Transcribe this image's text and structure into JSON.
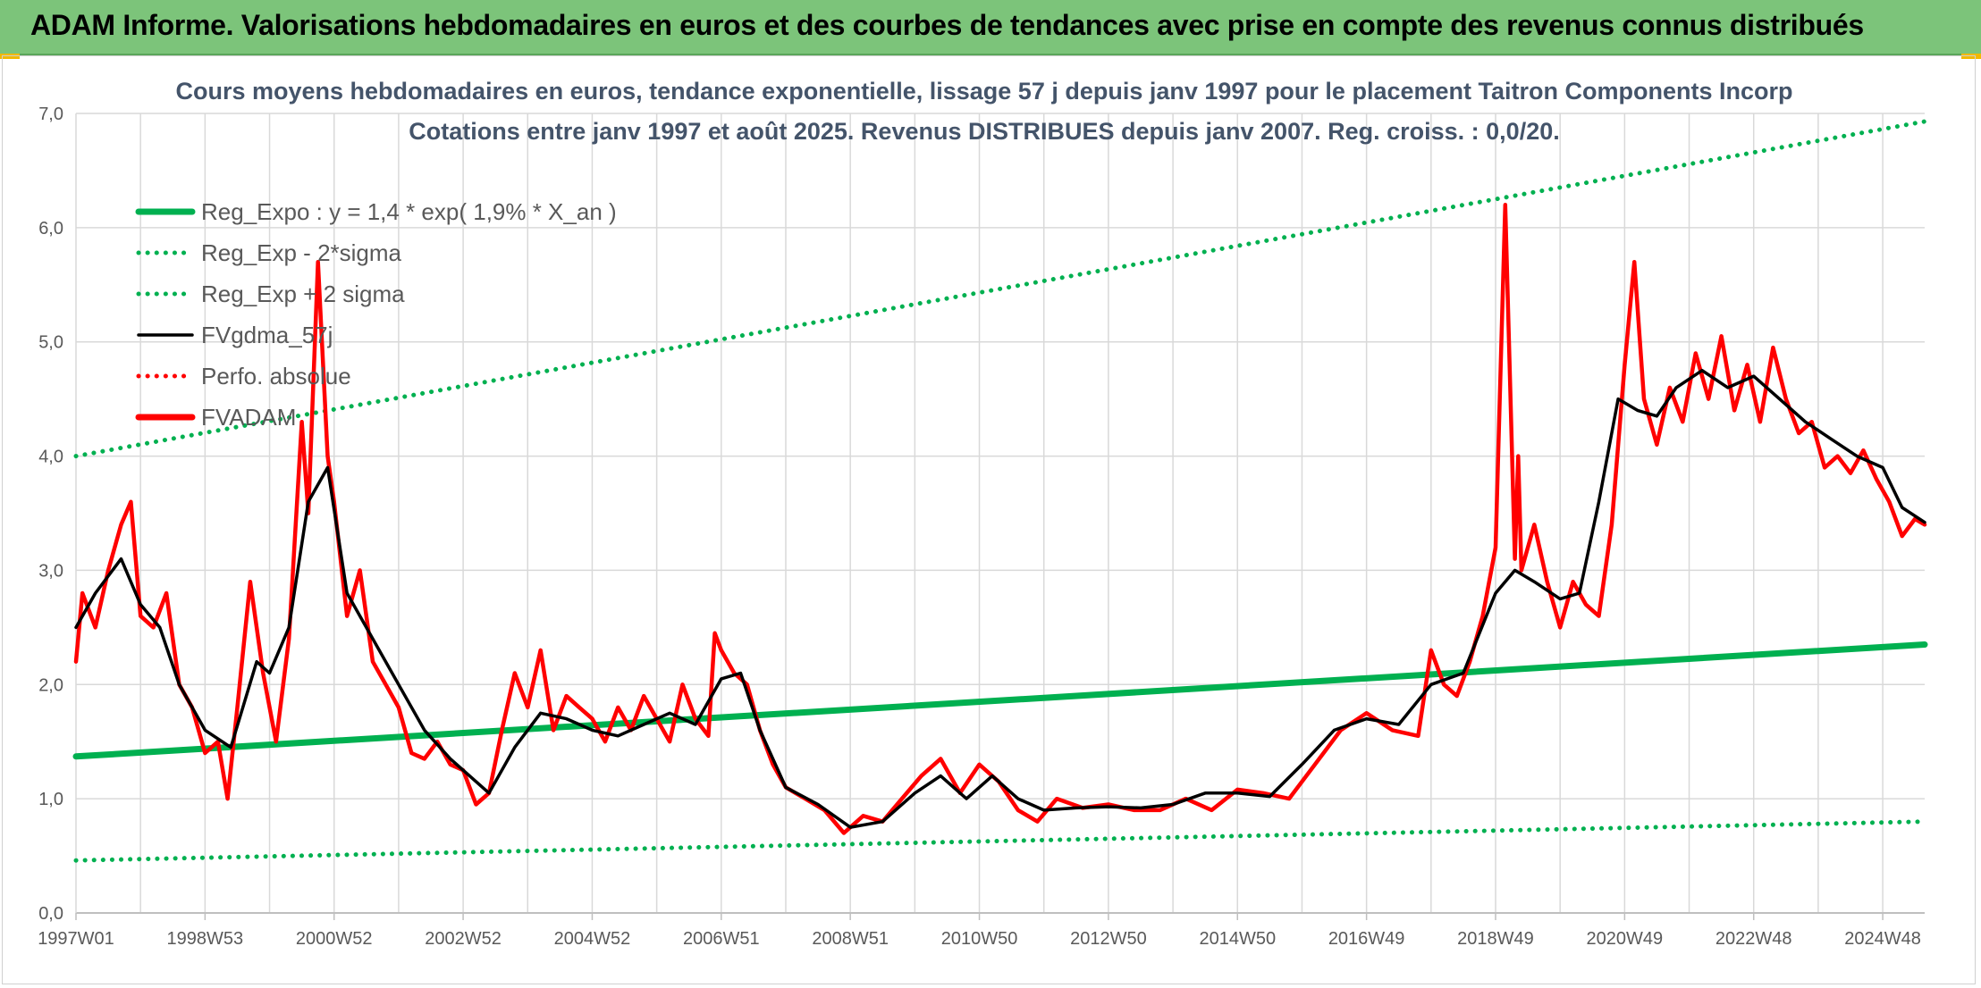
{
  "header": {
    "title": "ADAM Informe. Valorisations hebdomadaires en euros et des courbes de tendances avec prise en compte des revenus connus distribués"
  },
  "colors": {
    "header_bg": "#7cc47a",
    "reg_green": "#00b050",
    "fvgdma_black": "#000000",
    "fvadam_red": "#ff0000",
    "grid": "#d9d9d9"
  },
  "chart_data": {
    "type": "line",
    "title": "Cours moyens hebdomadaires en euros, tendance exponentielle, lissage 57 j depuis janv 1997 pour le placement Taitron Components Incorp",
    "subtitle": "Cotations entre janv 1997 et août 2025. Revenus DISTRIBUES depuis janv 2007. Reg. croiss. : 0,0/20.",
    "xlabel": "",
    "ylabel": "",
    "xlim": [
      1997.0,
      2025.65
    ],
    "ylim": [
      0,
      7
    ],
    "y_ticks": [
      "0,0",
      "1,0",
      "2,0",
      "3,0",
      "4,0",
      "5,0",
      "6,0",
      "7,0"
    ],
    "x_ticks": [
      {
        "label": "1997W01",
        "x": 1997.0
      },
      {
        "label": "1998W53",
        "x": 1999.0
      },
      {
        "label": "2000W52",
        "x": 2001.0
      },
      {
        "label": "2002W52",
        "x": 2003.0
      },
      {
        "label": "2004W52",
        "x": 2005.0
      },
      {
        "label": "2006W51",
        "x": 2007.0
      },
      {
        "label": "2008W51",
        "x": 2009.0
      },
      {
        "label": "2010W50",
        "x": 2011.0
      },
      {
        "label": "2012W50",
        "x": 2013.0
      },
      {
        "label": "2014W50",
        "x": 2015.0
      },
      {
        "label": "2016W49",
        "x": 2017.0
      },
      {
        "label": "2018W49",
        "x": 2019.0
      },
      {
        "label": "2020W49",
        "x": 2021.0
      },
      {
        "label": "2022W48",
        "x": 2023.0
      },
      {
        "label": "2024W48",
        "x": 2025.0
      }
    ],
    "grid": true,
    "legend_position": "top-left",
    "series": [
      {
        "name": "Reg_Expo : y = 1,4 * exp( 1,9% *  X_an )",
        "style": "solid-thick",
        "color": "#00b050",
        "x": [
          1997.0,
          2025.65
        ],
        "y": [
          1.37,
          2.35
        ]
      },
      {
        "name": "Reg_Exp - 2*sigma",
        "style": "dotted",
        "color": "#00b050",
        "x": [
          1997.0,
          2025.65
        ],
        "y": [
          0.46,
          0.8
        ]
      },
      {
        "name": "Reg_Exp + 2 sigma",
        "style": "dotted",
        "color": "#00b050",
        "x": [
          1997.0,
          2025.65
        ],
        "y": [
          4.0,
          6.93
        ]
      },
      {
        "name": "FVgdma_57j",
        "style": "solid",
        "color": "#000000",
        "x": [
          1997.0,
          1997.3,
          1997.7,
          1998.0,
          1998.3,
          1998.6,
          1999.0,
          1999.4,
          1999.8,
          2000.0,
          2000.3,
          2000.6,
          2000.9,
          2001.2,
          2001.6,
          2002.0,
          2002.4,
          2002.8,
          2003.0,
          2003.4,
          2003.8,
          2004.2,
          2004.6,
          2005.0,
          2005.4,
          2005.8,
          2006.2,
          2006.6,
          2007.0,
          2007.3,
          2007.6,
          2008.0,
          2008.5,
          2009.0,
          2009.5,
          2010.0,
          2010.4,
          2010.8,
          2011.2,
          2011.6,
          2012.0,
          2012.5,
          2013.0,
          2013.5,
          2014.0,
          2014.5,
          2015.0,
          2015.5,
          2016.0,
          2016.5,
          2017.0,
          2017.5,
          2018.0,
          2018.5,
          2019.0,
          2019.3,
          2019.6,
          2020.0,
          2020.3,
          2020.6,
          2020.9,
          2021.2,
          2021.5,
          2021.8,
          2022.2,
          2022.6,
          2023.0,
          2023.4,
          2023.8,
          2024.2,
          2024.6,
          2025.0,
          2025.3,
          2025.65
        ],
        "y": [
          2.5,
          2.8,
          3.1,
          2.7,
          2.5,
          2.0,
          1.6,
          1.45,
          2.2,
          2.1,
          2.5,
          3.6,
          3.9,
          2.8,
          2.4,
          2.0,
          1.6,
          1.35,
          1.25,
          1.05,
          1.45,
          1.75,
          1.7,
          1.6,
          1.55,
          1.65,
          1.75,
          1.65,
          2.05,
          2.1,
          1.6,
          1.1,
          0.95,
          0.75,
          0.8,
          1.05,
          1.2,
          1.0,
          1.2,
          1.0,
          0.9,
          0.92,
          0.93,
          0.92,
          0.95,
          1.05,
          1.05,
          1.02,
          1.3,
          1.6,
          1.7,
          1.65,
          2.0,
          2.1,
          2.8,
          3.0,
          2.9,
          2.75,
          2.8,
          3.6,
          4.5,
          4.4,
          4.35,
          4.6,
          4.75,
          4.6,
          4.7,
          4.5,
          4.3,
          4.15,
          4.0,
          3.9,
          3.55,
          3.42
        ]
      },
      {
        "name": "Perfo. absolue",
        "style": "dotted",
        "color": "#ff0000",
        "x": [],
        "y": []
      },
      {
        "name": "FVADAM",
        "style": "solid-thick",
        "color": "#ff0000",
        "x": [
          1997.0,
          1997.1,
          1997.3,
          1997.5,
          1997.7,
          1997.85,
          1998.0,
          1998.2,
          1998.4,
          1998.6,
          1998.8,
          1999.0,
          1999.2,
          1999.35,
          1999.5,
          1999.7,
          1999.9,
          2000.1,
          2000.3,
          2000.5,
          2000.6,
          2000.75,
          2000.9,
          2001.0,
          2001.2,
          2001.4,
          2001.6,
          2001.8,
          2002.0,
          2002.2,
          2002.4,
          2002.6,
          2002.8,
          2003.0,
          2003.2,
          2003.4,
          2003.6,
          2003.8,
          2004.0,
          2004.2,
          2004.4,
          2004.6,
          2004.8,
          2005.0,
          2005.2,
          2005.4,
          2005.6,
          2005.8,
          2006.0,
          2006.2,
          2006.4,
          2006.6,
          2006.8,
          2006.9,
          2007.0,
          2007.2,
          2007.4,
          2007.6,
          2007.8,
          2008.0,
          2008.3,
          2008.6,
          2008.9,
          2009.2,
          2009.5,
          2009.8,
          2010.1,
          2010.4,
          2010.7,
          2011.0,
          2011.3,
          2011.6,
          2011.9,
          2012.2,
          2012.6,
          2013.0,
          2013.4,
          2013.8,
          2014.2,
          2014.6,
          2015.0,
          2015.4,
          2015.8,
          2016.2,
          2016.6,
          2017.0,
          2017.4,
          2017.8,
          2018.0,
          2018.2,
          2018.4,
          2018.6,
          2018.8,
          2019.0,
          2019.15,
          2019.3,
          2019.35,
          2019.4,
          2019.6,
          2019.8,
          2020.0,
          2020.2,
          2020.4,
          2020.6,
          2020.8,
          2021.0,
          2021.15,
          2021.3,
          2021.5,
          2021.7,
          2021.9,
          2022.1,
          2022.3,
          2022.5,
          2022.7,
          2022.9,
          2023.1,
          2023.3,
          2023.5,
          2023.7,
          2023.9,
          2024.1,
          2024.3,
          2024.5,
          2024.7,
          2024.9,
          2025.1,
          2025.3,
          2025.5,
          2025.65
        ],
        "y": [
          2.2,
          2.8,
          2.5,
          3.0,
          3.4,
          3.6,
          2.6,
          2.5,
          2.8,
          2.0,
          1.8,
          1.4,
          1.5,
          1.0,
          1.8,
          2.9,
          2.1,
          1.5,
          2.4,
          4.3,
          3.5,
          5.7,
          4.0,
          3.6,
          2.6,
          3.0,
          2.2,
          2.0,
          1.8,
          1.4,
          1.35,
          1.5,
          1.3,
          1.25,
          0.95,
          1.05,
          1.6,
          2.1,
          1.8,
          2.3,
          1.6,
          1.9,
          1.8,
          1.7,
          1.5,
          1.8,
          1.6,
          1.9,
          1.7,
          1.5,
          2.0,
          1.7,
          1.55,
          2.45,
          2.3,
          2.1,
          2.0,
          1.6,
          1.3,
          1.1,
          1.0,
          0.9,
          0.7,
          0.85,
          0.8,
          1.0,
          1.2,
          1.35,
          1.05,
          1.3,
          1.15,
          0.9,
          0.8,
          1.0,
          0.92,
          0.95,
          0.9,
          0.9,
          1.0,
          0.9,
          1.08,
          1.05,
          1.0,
          1.3,
          1.6,
          1.75,
          1.6,
          1.55,
          2.3,
          2.0,
          1.9,
          2.2,
          2.6,
          3.2,
          6.2,
          3.1,
          4.0,
          3.0,
          3.4,
          2.9,
          2.5,
          2.9,
          2.7,
          2.6,
          3.4,
          4.8,
          5.7,
          4.5,
          4.1,
          4.6,
          4.3,
          4.9,
          4.5,
          5.05,
          4.4,
          4.8,
          4.3,
          4.95,
          4.5,
          4.2,
          4.3,
          3.9,
          4.0,
          3.85,
          4.05,
          3.8,
          3.6,
          3.3,
          3.45,
          3.4
        ]
      }
    ]
  }
}
